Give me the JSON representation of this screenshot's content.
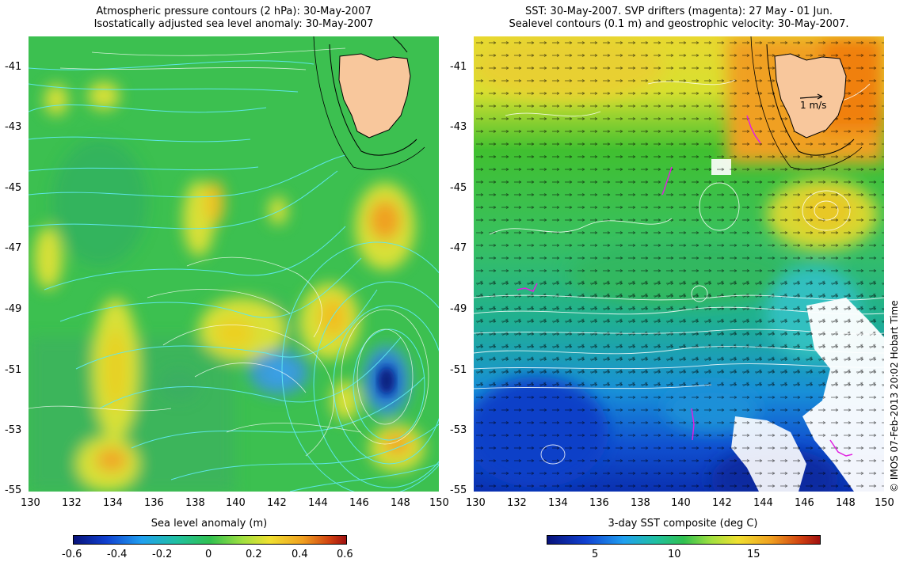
{
  "left_panel": {
    "title_line1": "Atmospheric pressure contours (2 hPa): 30-May-2007",
    "title_line2": "Isostatically adjusted sea level anomaly: 30-May-2007",
    "colorbar_label": "Sea level anomaly (m)",
    "colorbar_ticks": [
      "-0.6",
      "-0.4",
      "-0.2",
      "0",
      "0.2",
      "0.4",
      "0.6"
    ]
  },
  "right_panel": {
    "title_line1": "SST: 30-May-2007. SVP drifters (magenta): 27 May - 01 Jun.",
    "title_line2": "Sealevel contours (0.1 m) and geostrophic velocity: 30-May-2007.",
    "colorbar_label": "3-day SST composite (deg C)",
    "colorbar_ticks": [
      "5",
      "10",
      "15"
    ],
    "scale_arrow_label": "1 m/s"
  },
  "axes": {
    "lat_ticks": [
      "-41",
      "-43",
      "-45",
      "-47",
      "-49",
      "-51",
      "-53",
      "-55"
    ],
    "lon_ticks": [
      "130",
      "132",
      "134",
      "136",
      "138",
      "140",
      "142",
      "144",
      "146",
      "148",
      "150"
    ]
  },
  "credit": "© IMOS 07-Feb-2013 20:02 Hobart Time",
  "colors": {
    "land": "#f8c79c",
    "sla_background": "#3cc050",
    "sst_warm": "#f0a020",
    "sst_cold": "#1030c0",
    "drifter": "#e020e0"
  }
}
